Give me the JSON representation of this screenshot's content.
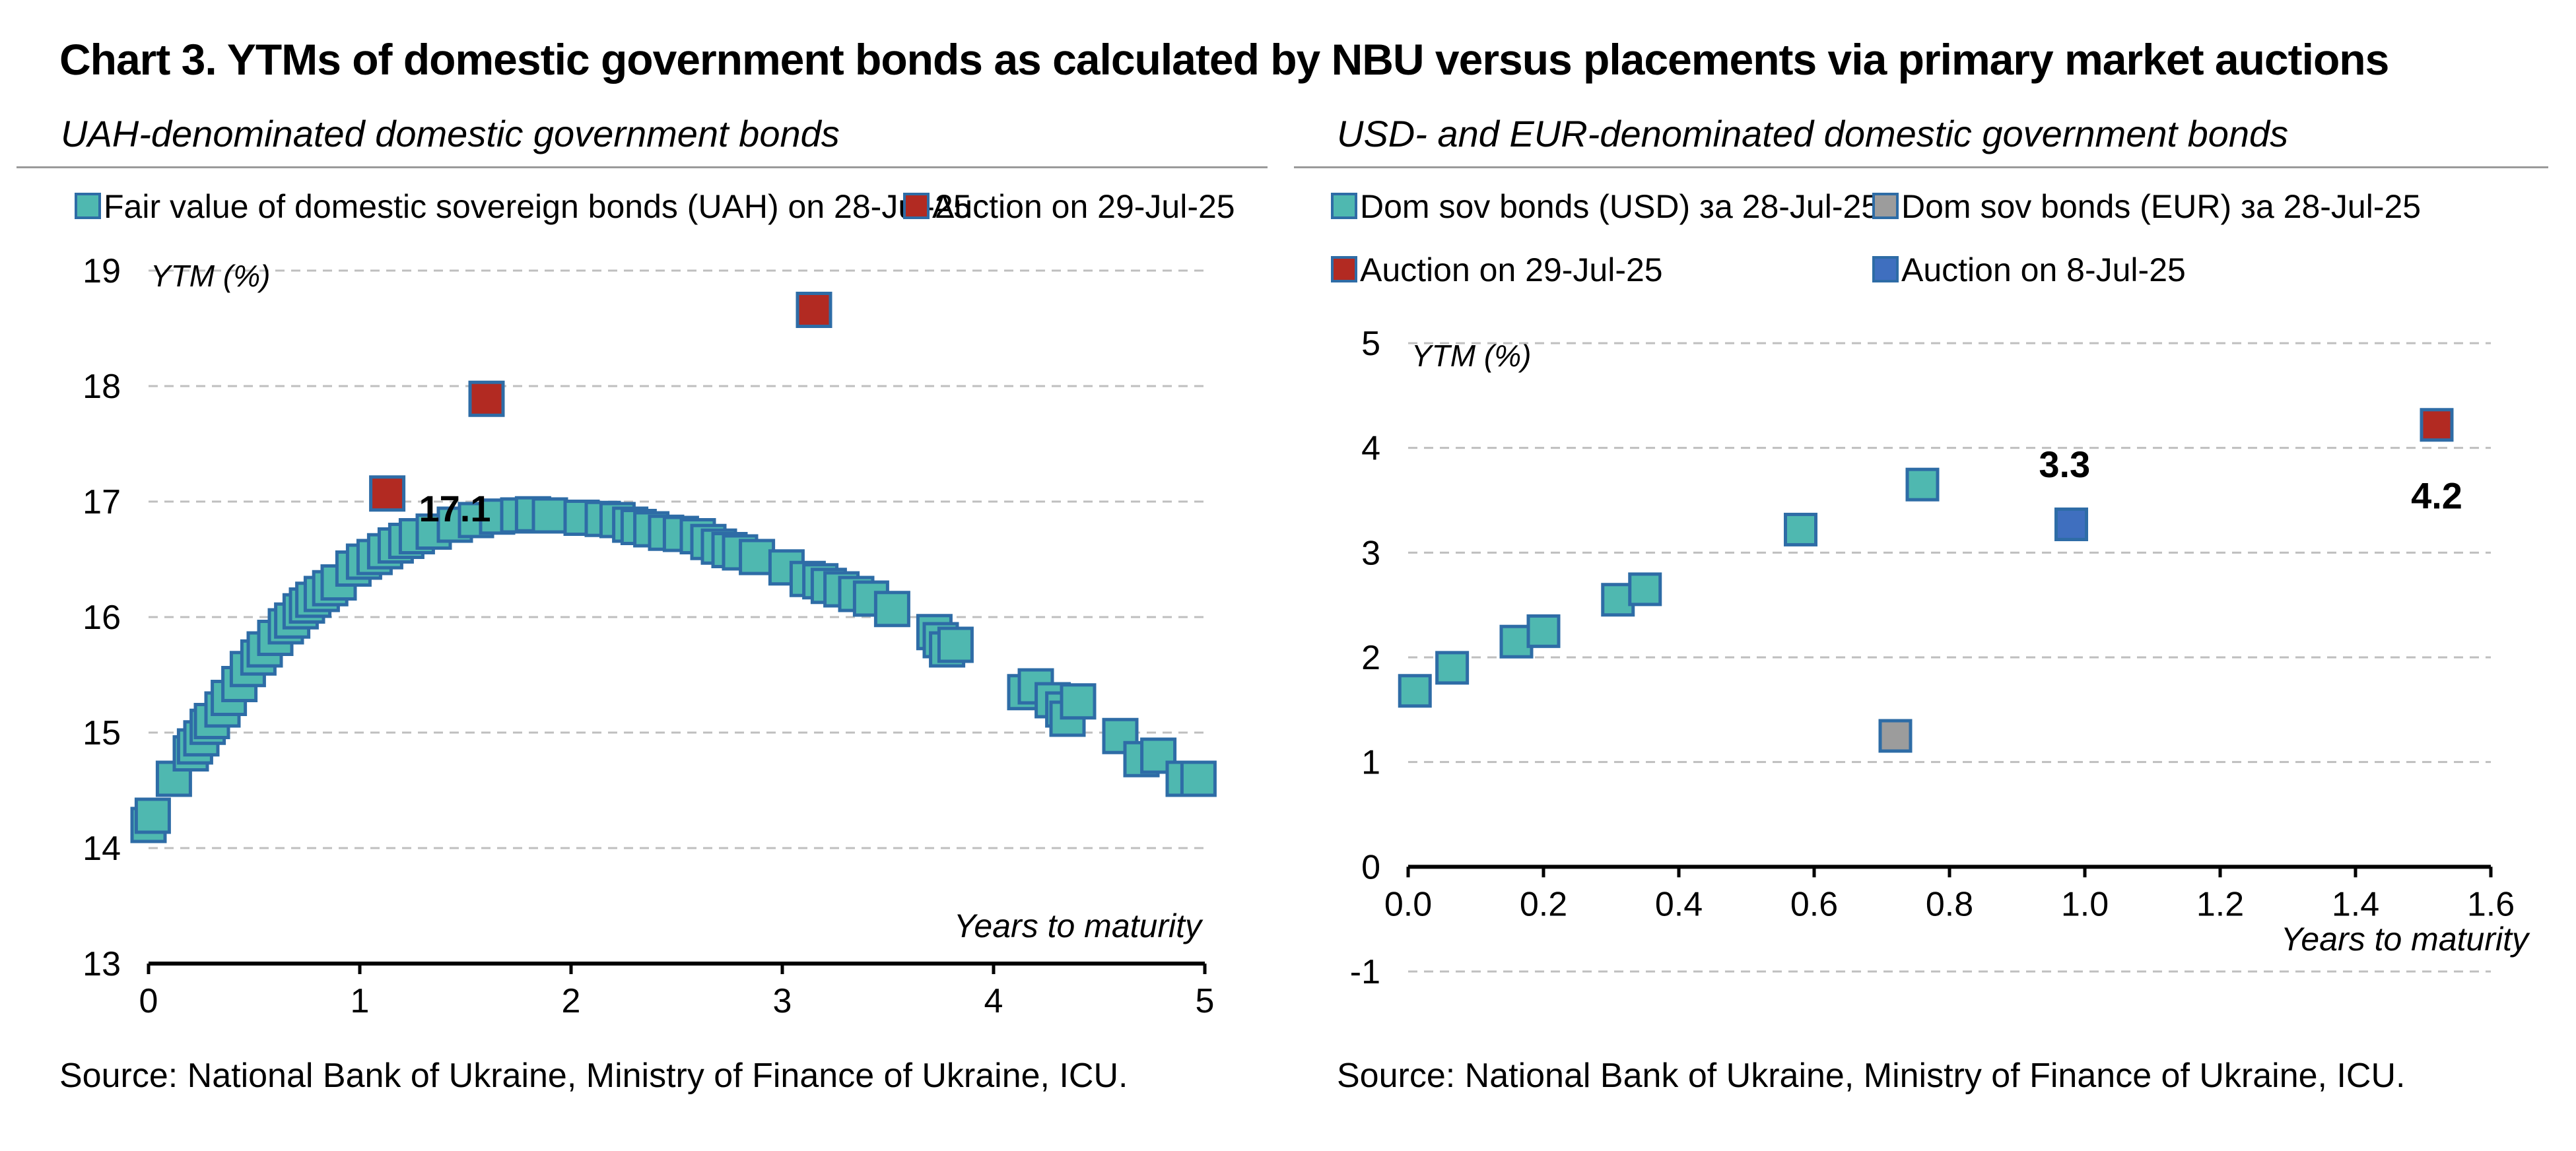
{
  "title": "Chart 3. YTMs of domestic government bonds as calculated by NBU versus placements via primary market auctions",
  "left_panel": {
    "subtitle": "UAH-denominated domestic government bonds",
    "source": "Source: National Bank of Ukraine, Ministry of Finance of Ukraine, ICU."
  },
  "right_panel": {
    "subtitle": "USD- and EUR-denominated domestic government bonds",
    "source": "Source: National Bank of Ukraine, Ministry of Finance of Ukraine, ICU."
  },
  "colors": {
    "teal": "#4fb8b0",
    "teal_border": "#2e6ca6",
    "red": "#b22a22",
    "blue": "#3f6fbf",
    "gray": "#9c9c9c",
    "grid": "#bfbfbf"
  },
  "chart_data": [
    {
      "type": "scatter",
      "ylabel": "YTM (%)",
      "xlabel": "Years to maturity",
      "xlim": [
        0,
        5
      ],
      "ylim": [
        13,
        19
      ],
      "x_ticks": [
        "0",
        "1",
        "2",
        "3",
        "4",
        "5"
      ],
      "y_ticks": [
        "13",
        "14",
        "15",
        "16",
        "17",
        "18",
        "19"
      ],
      "grid": "horizontal dashed",
      "legend": "top",
      "series": [
        {
          "name": "Fair value of domestic sovereign bonds (UAH) on 28-Jul-25",
          "color": "#4fb8b0",
          "points": [
            [
              0.0,
              14.2
            ],
            [
              0.02,
              14.28
            ],
            [
              0.12,
              14.6
            ],
            [
              0.2,
              14.82
            ],
            [
              0.22,
              14.88
            ],
            [
              0.25,
              14.95
            ],
            [
              0.28,
              15.05
            ],
            [
              0.3,
              15.1
            ],
            [
              0.35,
              15.2
            ],
            [
              0.38,
              15.3
            ],
            [
              0.43,
              15.42
            ],
            [
              0.47,
              15.55
            ],
            [
              0.52,
              15.65
            ],
            [
              0.55,
              15.72
            ],
            [
              0.6,
              15.82
            ],
            [
              0.65,
              15.92
            ],
            [
              0.68,
              15.97
            ],
            [
              0.72,
              16.05
            ],
            [
              0.75,
              16.1
            ],
            [
              0.78,
              16.15
            ],
            [
              0.82,
              16.2
            ],
            [
              0.86,
              16.25
            ],
            [
              0.9,
              16.3
            ],
            [
              0.97,
              16.42
            ],
            [
              1.02,
              16.48
            ],
            [
              1.07,
              16.52
            ],
            [
              1.12,
              16.57
            ],
            [
              1.17,
              16.62
            ],
            [
              1.22,
              16.66
            ],
            [
              1.27,
              16.7
            ],
            [
              1.35,
              16.74
            ],
            [
              1.45,
              16.8
            ],
            [
              1.55,
              16.84
            ],
            [
              1.65,
              16.87
            ],
            [
              1.75,
              16.88
            ],
            [
              1.82,
              16.89
            ],
            [
              1.9,
              16.88
            ],
            [
              2.05,
              16.86
            ],
            [
              2.15,
              16.85
            ],
            [
              2.22,
              16.84
            ],
            [
              2.28,
              16.8
            ],
            [
              2.32,
              16.78
            ],
            [
              2.38,
              16.76
            ],
            [
              2.45,
              16.73
            ],
            [
              2.52,
              16.72
            ],
            [
              2.6,
              16.7
            ],
            [
              2.65,
              16.65
            ],
            [
              2.7,
              16.61
            ],
            [
              2.75,
              16.58
            ],
            [
              2.8,
              16.56
            ],
            [
              2.88,
              16.52
            ],
            [
              3.02,
              16.43
            ],
            [
              3.12,
              16.33
            ],
            [
              3.18,
              16.31
            ],
            [
              3.22,
              16.27
            ],
            [
              3.28,
              16.24
            ],
            [
              3.35,
              16.2
            ],
            [
              3.42,
              16.16
            ],
            [
              3.52,
              16.07
            ],
            [
              3.72,
              15.87
            ],
            [
              3.75,
              15.8
            ],
            [
              3.78,
              15.72
            ],
            [
              3.82,
              15.76
            ],
            [
              4.15,
              15.35
            ],
            [
              4.2,
              15.4
            ],
            [
              4.28,
              15.28
            ],
            [
              4.33,
              15.2
            ],
            [
              4.35,
              15.12
            ],
            [
              4.4,
              15.27
            ],
            [
              4.6,
              14.97
            ],
            [
              4.7,
              14.77
            ],
            [
              4.78,
              14.8
            ],
            [
              4.9,
              14.6
            ],
            [
              4.97,
              14.6
            ]
          ]
        },
        {
          "name": "Auction on 29-Jul-25",
          "color": "#b22a22",
          "points": [
            [
              1.13,
              17.07
            ],
            [
              1.6,
              17.89
            ],
            [
              3.15,
              18.66
            ]
          ]
        }
      ],
      "annotations": [
        {
          "text": "17.1",
          "x": 1.45,
          "y": 16.83
        }
      ]
    },
    {
      "type": "scatter",
      "ylabel": "YTM (%)",
      "xlabel": "Years to maturity",
      "xlim": [
        0,
        1.6
      ],
      "ylim": [
        -1,
        5
      ],
      "x_ticks": [
        "0.0",
        "0.2",
        "0.4",
        "0.6",
        "0.8",
        "1.0",
        "1.2",
        "1.4",
        "1.6"
      ],
      "y_ticks": [
        "-1",
        "0",
        "1",
        "2",
        "3",
        "4",
        "5"
      ],
      "grid": "horizontal dashed",
      "legend": "top",
      "series": [
        {
          "name": "Dom sov bonds (USD) за 28-Jul-25",
          "color": "#4fb8b0",
          "points": [
            [
              0.01,
              1.68
            ],
            [
              0.065,
              1.9
            ],
            [
              0.16,
              2.15
            ],
            [
              0.2,
              2.25
            ],
            [
              0.31,
              2.55
            ],
            [
              0.35,
              2.65
            ],
            [
              0.58,
              3.22
            ],
            [
              0.76,
              3.65
            ]
          ]
        },
        {
          "name": "Dom sov bonds (EUR) за 28-Jul-25",
          "color": "#9c9c9c",
          "points": [
            [
              0.72,
              1.25
            ]
          ]
        },
        {
          "name": "Auction on 29-Jul-25",
          "color": "#b22a22",
          "points": [
            [
              1.52,
              4.22
            ]
          ]
        },
        {
          "name": "Auction on 8-Jul-25",
          "color": "#3f6fbf",
          "points": [
            [
              0.98,
              3.27
            ]
          ]
        }
      ],
      "annotations": [
        {
          "text": "3.3",
          "x": 0.97,
          "y": 3.72
        },
        {
          "text": "4.2",
          "x": 1.52,
          "y": 3.42
        }
      ]
    }
  ]
}
